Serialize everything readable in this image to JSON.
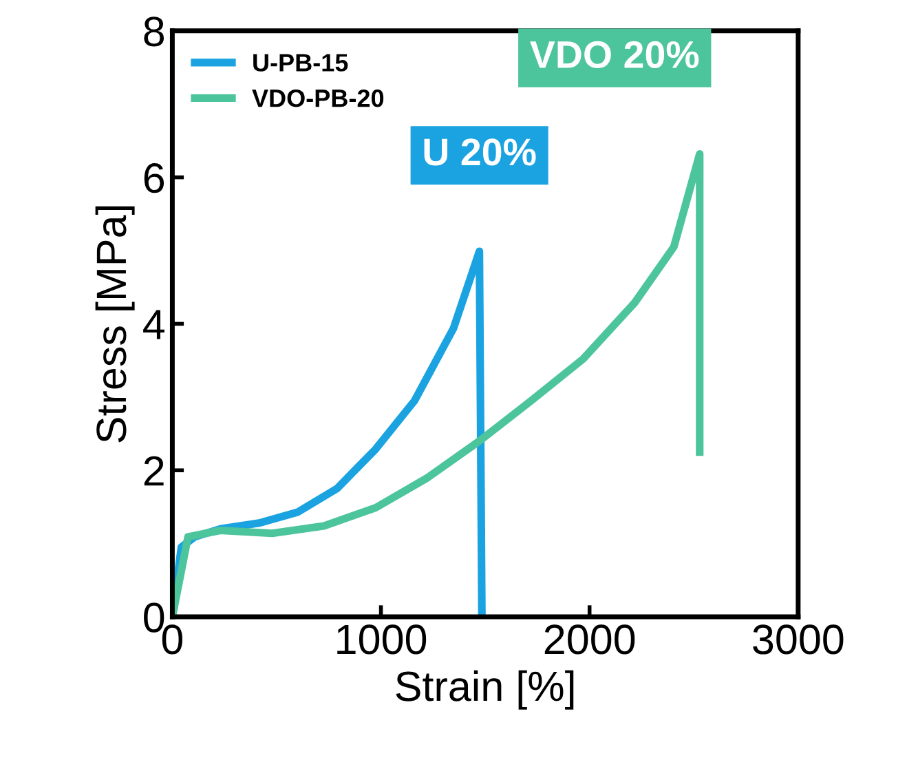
{
  "chart_data": {
    "type": "line",
    "xlabel": "Strain [%]",
    "ylabel": "Stress [MPa]",
    "xlim": [
      0,
      3000
    ],
    "xticks": [
      0,
      1000,
      2000,
      3000
    ],
    "ylim": [
      0,
      8
    ],
    "yticks": [
      0,
      2,
      4,
      6,
      8
    ],
    "legend": "top left",
    "grid": false,
    "marker": "none",
    "line_style": "solid",
    "series": [
      {
        "name": "U-PB-15",
        "color": "#1aa3e0",
        "x": [
          0,
          43,
          106,
          230,
          416,
          602,
          789,
          975,
          1161,
          1348,
          1472,
          1484
        ],
        "values": [
          0,
          0.95,
          1.09,
          1.2,
          1.28,
          1.43,
          1.75,
          2.29,
          2.95,
          3.94,
          4.99,
          0
        ]
      },
      {
        "name": "VDO-PB-20",
        "color": "#4cc49c",
        "x": [
          0,
          75,
          230,
          478,
          727,
          975,
          1224,
          1472,
          1720,
          1969,
          2217,
          2404,
          2528,
          2528
        ],
        "values": [
          0,
          1.09,
          1.18,
          1.14,
          1.24,
          1.49,
          1.9,
          2.4,
          2.95,
          3.52,
          4.29,
          5.05,
          6.32,
          2.25
        ]
      }
    ],
    "annotations": [
      {
        "text": "U 20%",
        "x": 1472,
        "y": 4.99
      },
      {
        "text": "VDO 20%",
        "x": 2528,
        "y": 6.32
      }
    ]
  }
}
